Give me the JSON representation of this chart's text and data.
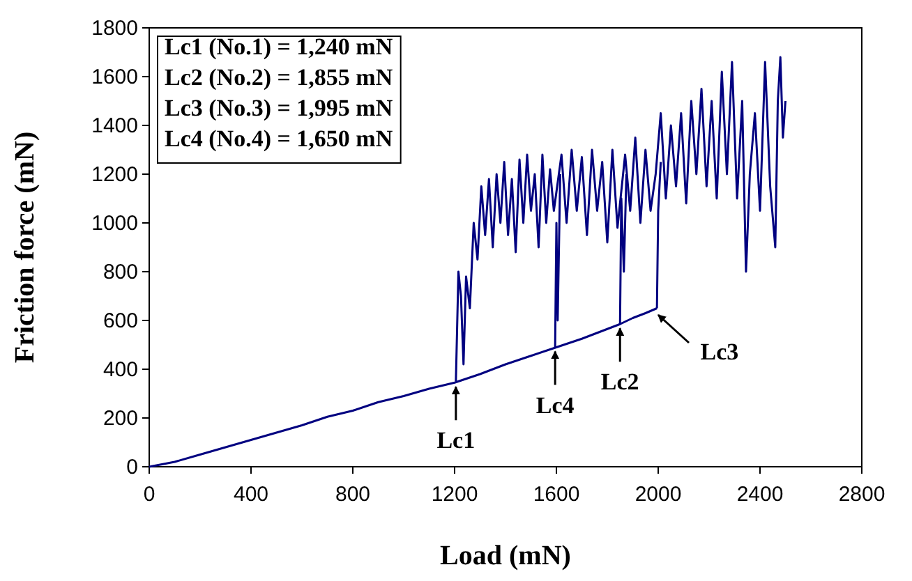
{
  "chart_data": {
    "type": "line",
    "xlabel": "Load (mN)",
    "ylabel": "Friction force (mN)",
    "xlim": [
      0,
      2800
    ],
    "xticks": [
      0,
      400,
      800,
      1200,
      1600,
      2000,
      2400,
      2800
    ],
    "ylim": [
      0,
      1800
    ],
    "yticks": [
      0,
      200,
      400,
      600,
      800,
      1000,
      1200,
      1400,
      1600,
      1800
    ],
    "grid": false,
    "marker": "none",
    "line_style": "solid",
    "series": [
      {
        "color": "#000080",
        "x": [
          0,
          50,
          100,
          200,
          300,
          400,
          500,
          600,
          700,
          800,
          900,
          1000,
          1100,
          1200,
          1300,
          1400,
          1500,
          1600,
          1700,
          1800,
          1850,
          1900,
          1950,
          1995
        ],
        "values": [
          0,
          10,
          20,
          50,
          80,
          110,
          140,
          170,
          205,
          230,
          265,
          290,
          320,
          345,
          380,
          420,
          455,
          490,
          525,
          565,
          585,
          610,
          630,
          650
        ]
      },
      {
        "color": "#000080",
        "x": [
          1205,
          1215,
          1225,
          1235,
          1245,
          1260,
          1275,
          1290,
          1305,
          1320,
          1335,
          1350,
          1365,
          1380,
          1395,
          1410,
          1425,
          1440,
          1455,
          1470,
          1485,
          1500,
          1515,
          1530,
          1545,
          1560,
          1575,
          1590,
          1620,
          1640,
          1660,
          1680,
          1700,
          1720,
          1740,
          1760,
          1780,
          1800,
          1820,
          1840,
          1870,
          1890,
          1910,
          1930,
          1950,
          1970,
          1990,
          2010,
          2030,
          2050,
          2070,
          2090,
          2110,
          2130,
          2150,
          2170,
          2190,
          2210,
          2230,
          2250,
          2270,
          2290,
          2310,
          2330,
          2345,
          2360,
          2380,
          2400,
          2420,
          2440,
          2460,
          2470,
          2480,
          2490,
          2500
        ],
        "values": [
          350,
          800,
          700,
          420,
          780,
          650,
          1000,
          850,
          1150,
          950,
          1180,
          900,
          1200,
          1000,
          1250,
          950,
          1180,
          880,
          1260,
          1000,
          1280,
          1050,
          1200,
          900,
          1280,
          1000,
          1220,
          1050,
          1280,
          1000,
          1300,
          1050,
          1270,
          950,
          1300,
          1050,
          1250,
          920,
          1300,
          980,
          1280,
          1050,
          1350,
          1000,
          1300,
          1050,
          1200,
          1450,
          1100,
          1400,
          1150,
          1450,
          1080,
          1500,
          1200,
          1550,
          1150,
          1500,
          1100,
          1620,
          1200,
          1660,
          1100,
          1500,
          800,
          1200,
          1450,
          1050,
          1660,
          1150,
          900,
          1500,
          1680,
          1350,
          1500
        ]
      },
      {
        "color": "#000080",
        "x": [
          1595,
          1600,
          1605,
          1615
        ],
        "values": [
          490,
          1000,
          600,
          1200
        ]
      },
      {
        "color": "#000080",
        "x": [
          1850,
          1855,
          1865,
          1875
        ],
        "values": [
          585,
          1100,
          800,
          1200
        ]
      },
      {
        "color": "#000080",
        "x": [
          1995,
          2000,
          2010
        ],
        "values": [
          650,
          1050,
          1250
        ]
      }
    ],
    "annotations": [
      "Lc1 (No.1) = 1,240 mN",
      "Lc2 (No.2) = 1,855 mN",
      "Lc3 (No.3) = 1,995 mN",
      "Lc4 (No.4) = 1,650 mN",
      {
        "text": "Lc1",
        "x": 1205,
        "y": 345
      },
      {
        "text": "Lc4",
        "x": 1595,
        "y": 490
      },
      {
        "text": "Lc2",
        "x": 1850,
        "y": 585
      },
      {
        "text": "Lc3",
        "x": 2000,
        "y": 640
      }
    ]
  }
}
